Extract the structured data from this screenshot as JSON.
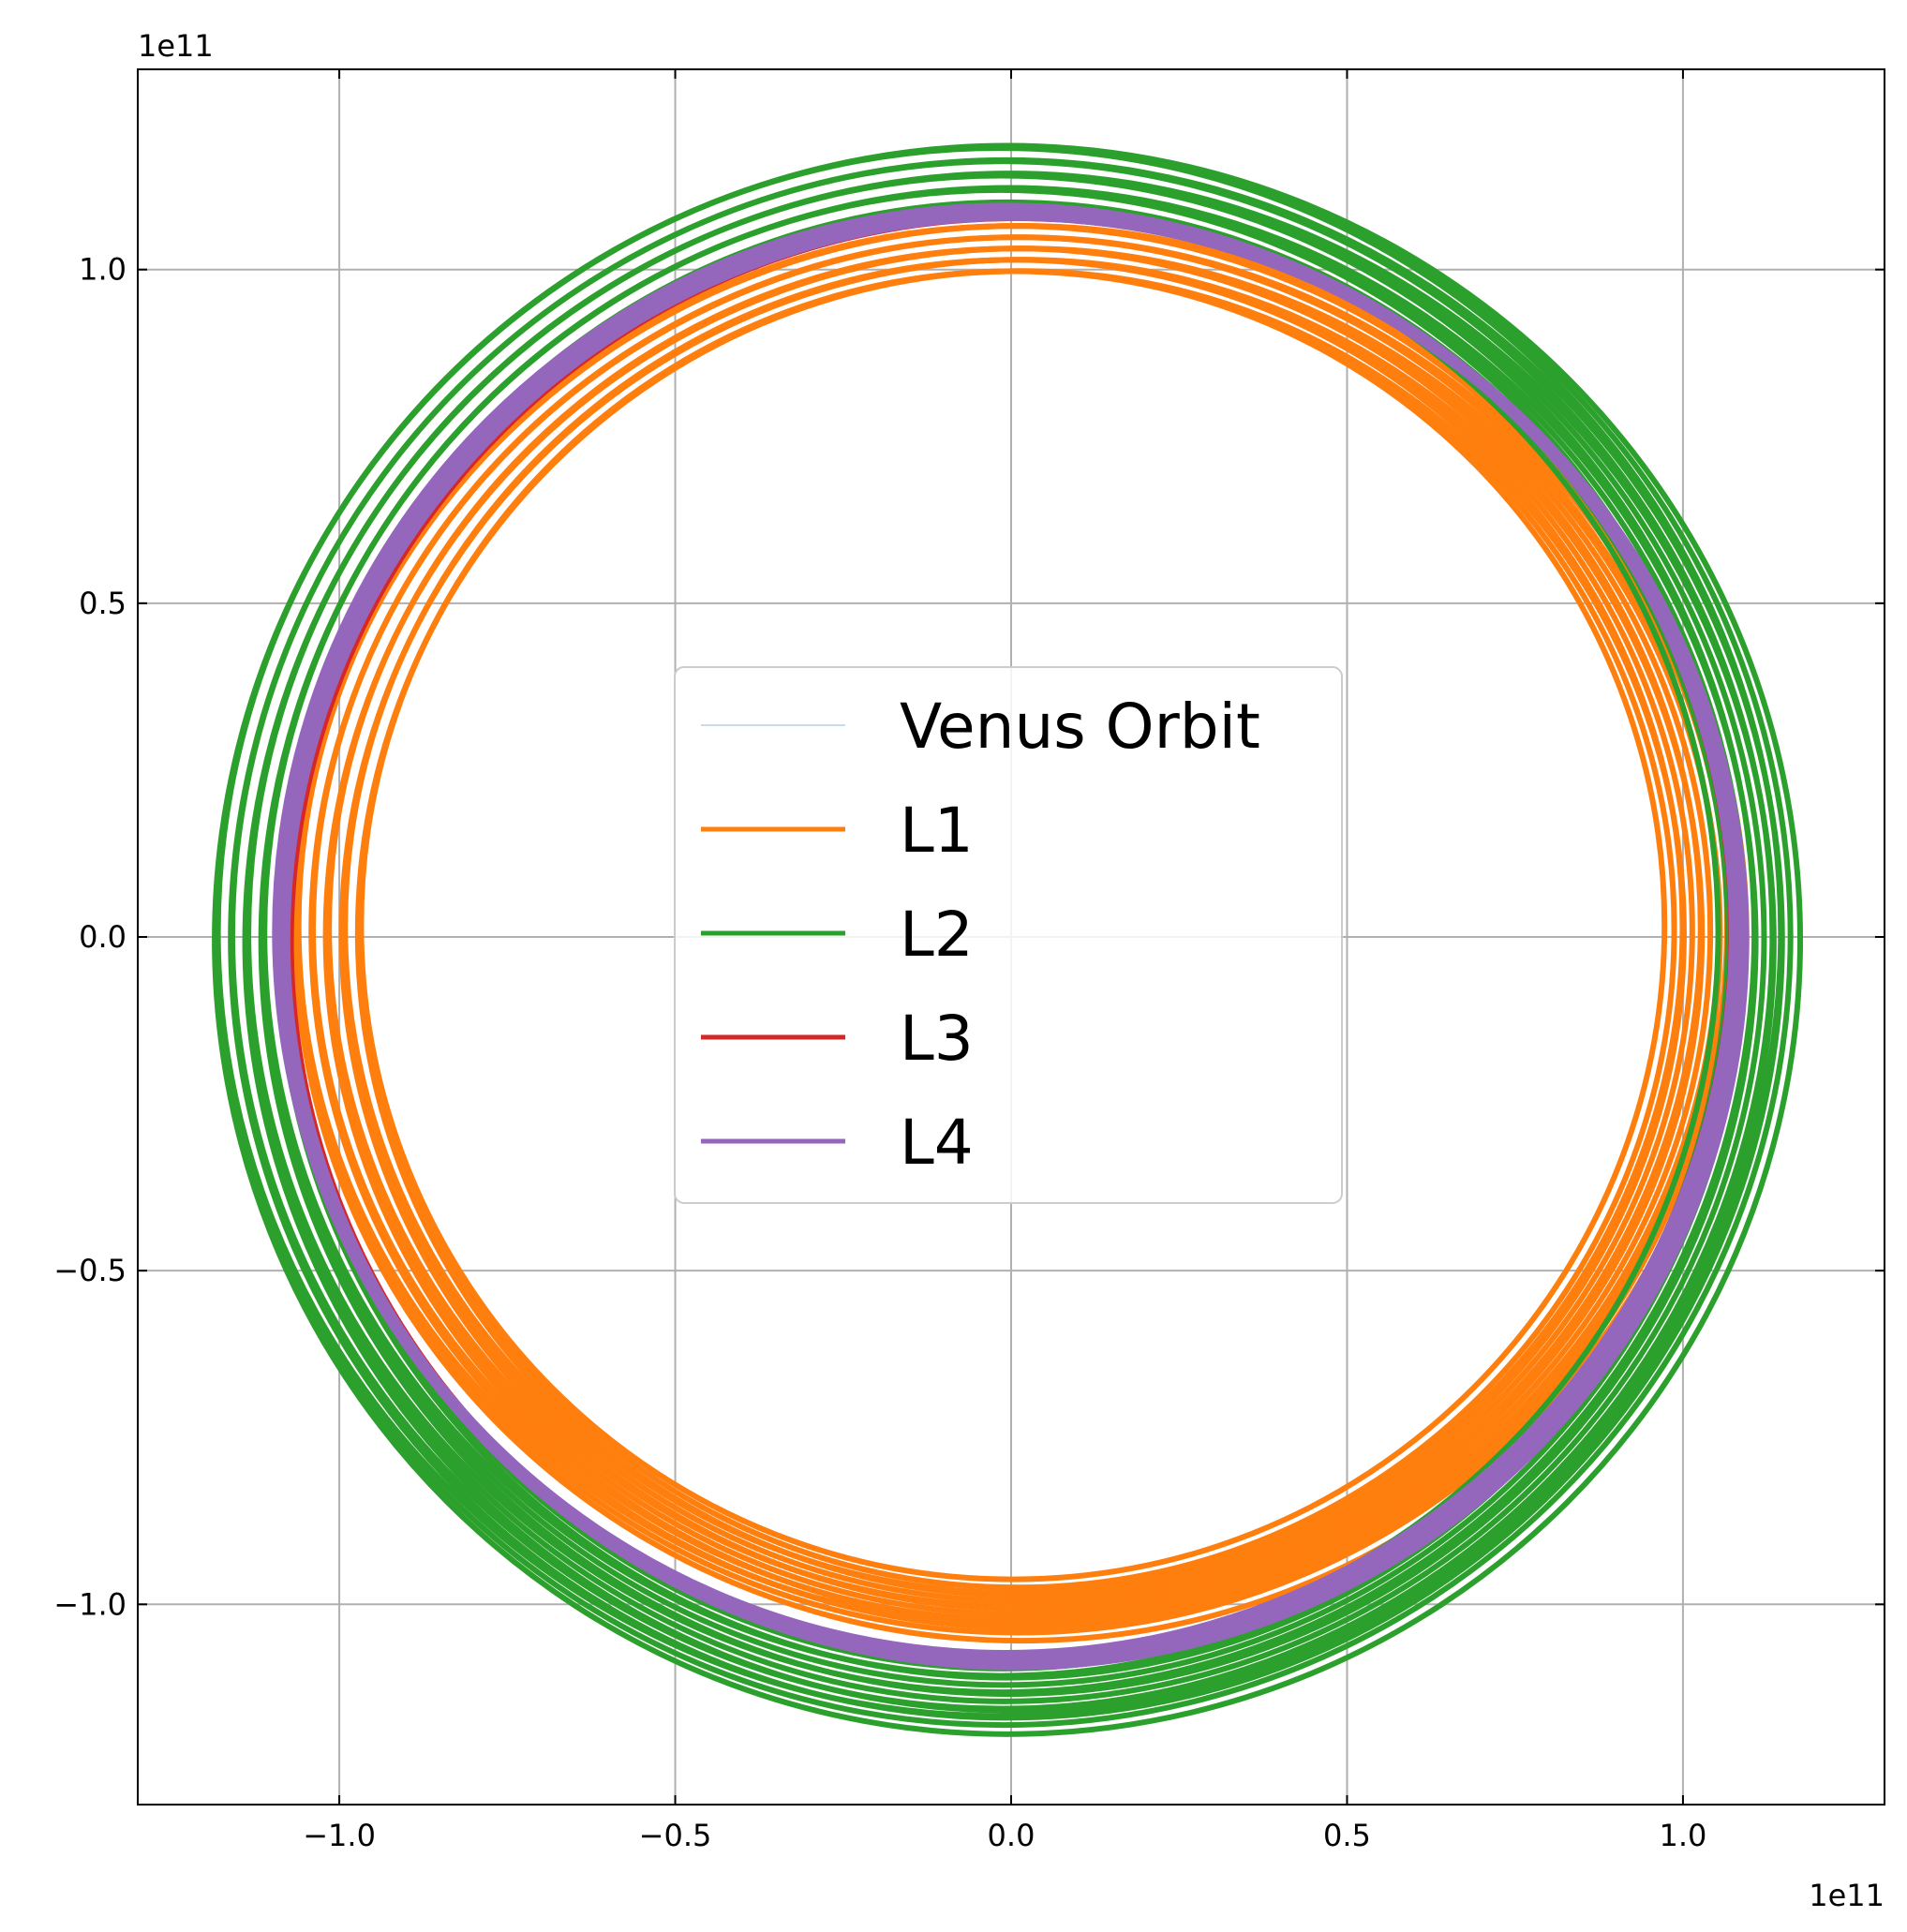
{
  "chart_data": {
    "type": "line",
    "title": "",
    "xlabel": "",
    "ylabel": "",
    "x_offset_text": "1e11",
    "y_offset_text": "1e11",
    "xlim": [
      -1.3,
      1.3
    ],
    "ylim": [
      -1.3,
      1.3
    ],
    "x_ticks": [
      -1.0,
      -0.5,
      0.0,
      0.5,
      1.0
    ],
    "y_ticks": [
      -1.0,
      -0.5,
      0.0,
      0.5,
      1.0
    ],
    "x_tick_labels": [
      "−1.0",
      "−0.5",
      "0.0",
      "0.5",
      "1.0"
    ],
    "y_tick_labels": [
      "−1.0",
      "−0.5",
      "0.0",
      "0.5",
      "1.0"
    ],
    "grid": true,
    "legend_position": "center",
    "series": [
      {
        "name": "Venus Orbit",
        "color": "#1f77b4",
        "orbit": {
          "rx_min": 0,
          "rx_max": 0,
          "ry_min": 0,
          "ry_max": 0,
          "cx": 0,
          "cy": 0
        }
      },
      {
        "name": "L1",
        "color": "#ff7f0e",
        "orbit": {
          "rx_min": 0.97,
          "rx_max": 1.08,
          "ry_min": 0.98,
          "ry_max": 1.06,
          "cx": 0.01,
          "cy": 0.01
        }
      },
      {
        "name": "L2",
        "color": "#2ca02c",
        "orbit": {
          "rx_min": 1.07,
          "rx_max": 1.18,
          "ry_min": 1.09,
          "ry_max": 1.19,
          "cx": -0.01,
          "cy": 0.0
        }
      },
      {
        "name": "L3",
        "color": "#d62728",
        "orbit": {
          "rx_min": 1.08,
          "rx_max": 1.08,
          "ry_min": 1.085,
          "ry_max": 1.085,
          "cx": 0.0,
          "cy": 0.0
        }
      },
      {
        "name": "L4",
        "color": "#9467bd",
        "orbit": {
          "rx_min": 1.08,
          "rx_max": 1.09,
          "ry_min": 1.08,
          "ry_max": 1.09,
          "cx": 0.0,
          "cy": 0.0
        }
      }
    ]
  }
}
